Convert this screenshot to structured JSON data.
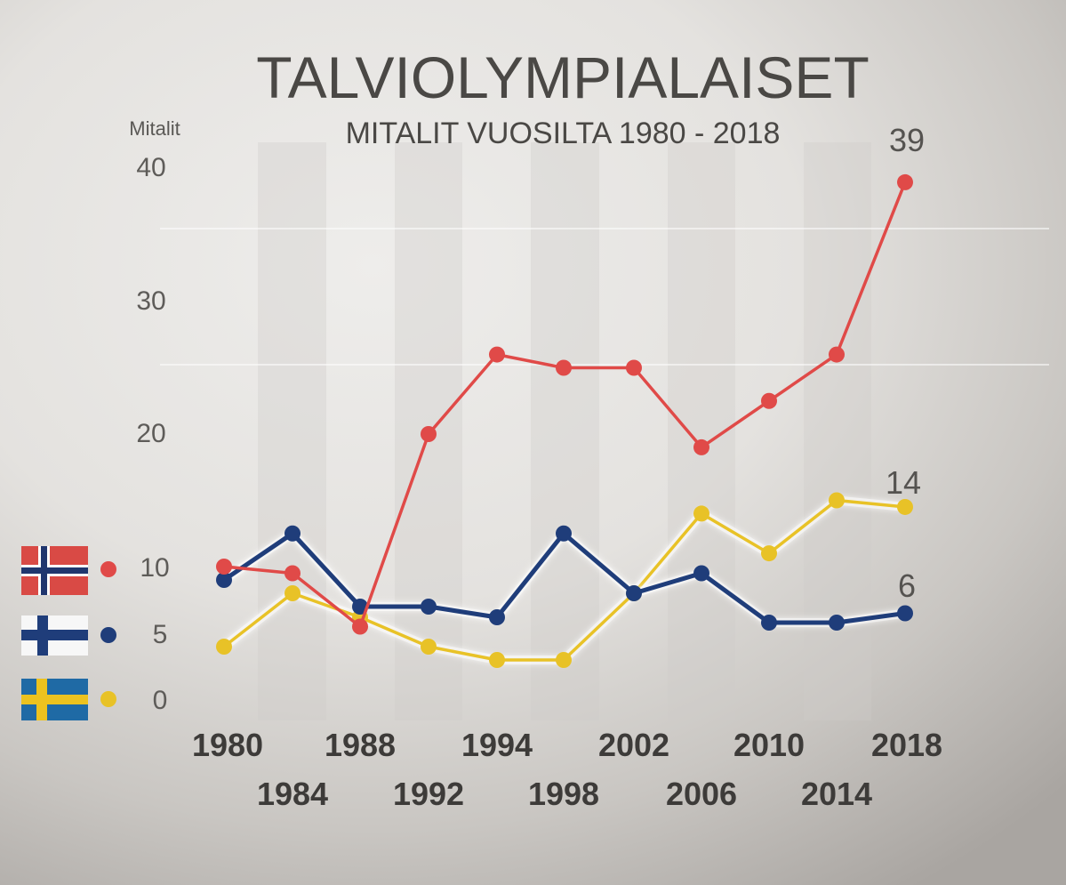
{
  "chart_data": {
    "type": "line",
    "title": "TALVIOLYMPIALAISET",
    "subtitle": "MITALIT VUOSILTA 1980 - 2018",
    "ylabel": "Mitalit",
    "xlabel": "",
    "ylim": [
      0,
      40
    ],
    "yticks": [
      "40",
      "30",
      "20",
      "10",
      "5",
      "0"
    ],
    "x": [
      "1980",
      "1984",
      "1988",
      "1992",
      "1994",
      "1998",
      "2002",
      "2006",
      "2010",
      "2014",
      "2018"
    ],
    "grid": false,
    "legend": "left",
    "series": [
      {
        "country": "norway",
        "color": "#e04a48",
        "flag": "norway-flag",
        "values": [
          10,
          9.5,
          5.5,
          20,
          26,
          25,
          25,
          19,
          22.5,
          26,
          39
        ],
        "end_label": "39"
      },
      {
        "country": "finland",
        "color": "#1f3d7a",
        "flag": "finland-flag",
        "values": [
          9,
          12.5,
          7,
          7,
          6.2,
          12.5,
          8,
          9.5,
          5.8,
          5.8,
          6.5
        ],
        "end_label": "6"
      },
      {
        "country": "sweden",
        "color": "#e8c227",
        "flag": "sweden-flag",
        "values": [
          4,
          8,
          6.2,
          4,
          3,
          3,
          8,
          14,
          11,
          15,
          14.5
        ],
        "end_label": "14"
      }
    ]
  }
}
